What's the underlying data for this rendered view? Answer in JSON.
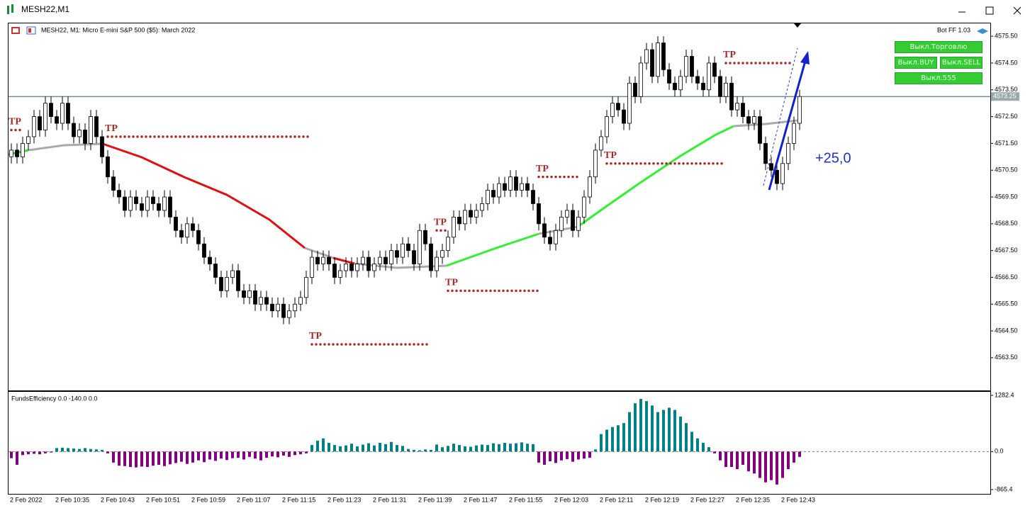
{
  "window": {
    "title": "MESH22,M1"
  },
  "chart_header": "MESH22, M1:  Micro E-mini S&P 500 ($5): March 2022",
  "bot_label": "Bot FF 1.03",
  "buttons": {
    "trading": "Выкл.Торговлю",
    "buy": "Выкл.BUY",
    "sell": "Выкл.SELL",
    "b555": "Выкл.555"
  },
  "chart_data": [
    {
      "type": "candlestick",
      "up_color": "#ffffff",
      "down_color": "#000000",
      "categories": [
        "2 Feb 2022",
        null,
        null,
        null,
        null,
        null,
        null,
        null,
        "2 Feb 10:35",
        null,
        null,
        null,
        null,
        null,
        null,
        null,
        "2 Feb 10:43",
        null,
        null,
        null,
        null,
        null,
        null,
        null,
        "2 Feb 10:51",
        null,
        null,
        null,
        null,
        null,
        null,
        null,
        "2 Feb 10:59",
        null,
        null,
        null,
        null,
        null,
        null,
        null,
        "2 Feb 11:07",
        null,
        null,
        null,
        null,
        null,
        null,
        null,
        "2 Feb 11:15",
        null,
        null,
        null,
        null,
        null,
        null,
        null,
        "2 Feb 11:23",
        null,
        null,
        null,
        null,
        null,
        null,
        null,
        "2 Feb 11:31",
        null,
        null,
        null,
        null,
        null,
        null,
        null,
        "2 Feb 11:39",
        null,
        null,
        null,
        null,
        null,
        null,
        null,
        "2 Feb 11:47",
        null,
        null,
        null,
        null,
        null,
        null,
        null,
        "2 Feb 11:55",
        null,
        null,
        null,
        null,
        null,
        null,
        null,
        "2 Feb 12:03",
        null,
        null,
        null,
        null,
        null,
        null,
        null,
        "2 Feb 12:11",
        null,
        null,
        null,
        null,
        null,
        null,
        null,
        "2 Feb 12:19",
        null,
        null,
        null,
        null,
        null,
        null,
        null,
        "2 Feb 12:27",
        null,
        null,
        null,
        null,
        null,
        null,
        null,
        "2 Feb 12:35",
        null,
        null,
        null,
        null,
        null,
        null,
        null,
        "2 Feb 12:43",
        null,
        null,
        null
      ],
      "open": [
        4571.0,
        4571.25,
        4571.0,
        4571.5,
        4571.75,
        4572.5,
        4572.0,
        4573.0,
        4572.5,
        4572.25,
        4573.0,
        4572.25,
        4571.75,
        4572.0,
        4571.5,
        4572.5,
        4571.75,
        4571.0,
        4570.25,
        4569.75,
        4569.5,
        4569.0,
        4569.5,
        4569.25,
        4569.0,
        4569.5,
        4569.25,
        4569.0,
        4569.5,
        4568.75,
        4568.25,
        4568.0,
        4568.5,
        4568.25,
        4567.75,
        4567.25,
        4567.0,
        4566.5,
        4566.0,
        4566.5,
        4566.75,
        4566.0,
        4565.75,
        4566.0,
        4565.5,
        4565.75,
        4565.5,
        4565.25,
        4565.5,
        4565.0,
        4565.25,
        4565.5,
        4565.75,
        4566.5,
        4567.25,
        4567.0,
        4567.25,
        4567.0,
        4566.5,
        4566.75,
        4567.0,
        4566.75,
        4567.0,
        4567.25,
        4566.75,
        4567.0,
        4567.25,
        4567.0,
        4567.5,
        4567.25,
        4567.75,
        4567.5,
        4567.0,
        4568.25,
        4567.75,
        4566.75,
        4567.25,
        4567.5,
        4568.0,
        4568.75,
        4568.5,
        4569.0,
        4568.75,
        4569.0,
        4569.25,
        4569.75,
        4569.5,
        4570.0,
        4569.75,
        4570.25,
        4569.75,
        4570.0,
        4569.75,
        4569.25,
        4568.5,
        4568.0,
        4567.75,
        4568.25,
        4568.75,
        4569.0,
        4568.25,
        4568.75,
        4569.5,
        4570.25,
        4571.25,
        4571.75,
        4572.5,
        4573.0,
        4572.75,
        4572.25,
        4573.75,
        4573.25,
        4574.5,
        4575.0,
        4574.0,
        4575.25,
        4574.25,
        4573.75,
        4573.5,
        4574.0,
        4574.75,
        4574.0,
        4573.75,
        4573.5,
        4574.5,
        4574.0,
        4573.25,
        4573.75,
        4572.75,
        4573.0,
        4572.5,
        4572.25,
        4572.5,
        4571.5,
        4570.75,
        4570.5,
        4570.0,
        4570.75,
        4571.5,
        4572.25
      ],
      "high": [
        4571.5,
        4571.5,
        4571.75,
        4572.0,
        4572.75,
        4572.75,
        4573.25,
        4573.25,
        4572.75,
        4573.25,
        4573.25,
        4572.5,
        4572.25,
        4572.25,
        4572.75,
        4572.75,
        4572.0,
        4571.25,
        4570.5,
        4570.0,
        4569.75,
        4569.75,
        4569.75,
        4569.5,
        4569.75,
        4569.75,
        4569.5,
        4569.75,
        4569.75,
        4569.0,
        4568.5,
        4568.75,
        4568.75,
        4568.5,
        4568.0,
        4567.5,
        4567.25,
        4566.75,
        4566.75,
        4567.0,
        4567.0,
        4566.25,
        4566.25,
        4566.25,
        4566.0,
        4566.0,
        4565.75,
        4565.75,
        4565.75,
        4565.5,
        4565.75,
        4566.0,
        4566.75,
        4567.5,
        4567.5,
        4567.5,
        4567.5,
        4567.25,
        4567.0,
        4567.25,
        4567.25,
        4567.25,
        4567.5,
        4567.5,
        4567.25,
        4567.5,
        4567.5,
        4567.75,
        4567.75,
        4568.0,
        4568.0,
        4567.75,
        4568.5,
        4568.5,
        4568.0,
        4567.5,
        4567.75,
        4568.25,
        4569.0,
        4569.0,
        4569.25,
        4569.25,
        4569.25,
        4569.5,
        4570.0,
        4570.0,
        4570.25,
        4570.25,
        4570.5,
        4570.5,
        4570.25,
        4570.25,
        4570.0,
        4569.5,
        4568.75,
        4568.25,
        4568.5,
        4569.0,
        4569.25,
        4569.25,
        4569.0,
        4569.75,
        4570.5,
        4571.5,
        4572.0,
        4572.75,
        4573.25,
        4573.25,
        4573.0,
        4574.0,
        4574.0,
        4574.75,
        4575.25,
        4575.25,
        4575.5,
        4575.5,
        4574.5,
        4574.0,
        4574.25,
        4575.0,
        4575.0,
        4574.25,
        4574.0,
        4574.75,
        4574.75,
        4574.25,
        4574.0,
        4574.0,
        4573.25,
        4573.25,
        4572.75,
        4572.75,
        4572.75,
        4571.75,
        4571.0,
        4570.75,
        4571.0,
        4571.75,
        4572.5,
        4573.5
      ],
      "low": [
        4570.75,
        4570.75,
        4570.75,
        4571.25,
        4571.5,
        4571.75,
        4571.75,
        4572.25,
        4572.0,
        4572.0,
        4572.0,
        4571.5,
        4571.5,
        4571.25,
        4571.25,
        4571.5,
        4570.75,
        4570.0,
        4569.5,
        4569.25,
        4568.75,
        4568.75,
        4569.0,
        4568.75,
        4568.75,
        4569.0,
        4568.75,
        4568.75,
        4568.5,
        4568.0,
        4567.75,
        4567.75,
        4568.0,
        4567.5,
        4567.0,
        4566.75,
        4566.25,
        4565.75,
        4565.75,
        4566.25,
        4565.75,
        4565.5,
        4565.5,
        4565.25,
        4565.25,
        4565.25,
        4565.0,
        4565.0,
        4564.75,
        4564.75,
        4565.0,
        4565.25,
        4565.5,
        4566.25,
        4566.75,
        4566.75,
        4566.75,
        4566.25,
        4566.25,
        4566.5,
        4566.5,
        4566.5,
        4566.75,
        4566.5,
        4566.5,
        4566.75,
        4566.75,
        4566.75,
        4567.0,
        4567.0,
        4567.25,
        4566.75,
        4566.75,
        4567.5,
        4566.5,
        4566.5,
        4567.0,
        4567.25,
        4567.75,
        4568.25,
        4568.25,
        4568.5,
        4568.5,
        4568.75,
        4569.0,
        4569.25,
        4569.25,
        4569.5,
        4569.5,
        4569.5,
        4569.5,
        4569.5,
        4569.0,
        4568.25,
        4567.75,
        4567.5,
        4567.5,
        4568.0,
        4568.5,
        4568.0,
        4568.0,
        4568.5,
        4569.25,
        4570.0,
        4571.0,
        4571.5,
        4572.25,
        4572.5,
        4572.0,
        4572.0,
        4573.0,
        4573.0,
        4574.25,
        4573.75,
        4573.75,
        4574.0,
        4573.5,
        4573.25,
        4573.25,
        4573.75,
        4573.75,
        4573.5,
        4573.25,
        4573.25,
        4573.75,
        4573.0,
        4573.0,
        4572.5,
        4572.5,
        4572.25,
        4572.0,
        4572.0,
        4571.25,
        4570.5,
        4570.25,
        4569.75,
        4569.75,
        4570.5,
        4571.25,
        4572.0
      ],
      "close": [
        4571.25,
        4571.0,
        4571.5,
        4571.75,
        4572.5,
        4572.0,
        4573.0,
        4572.5,
        4572.25,
        4573.0,
        4572.25,
        4571.75,
        4572.0,
        4571.5,
        4572.5,
        4571.75,
        4571.0,
        4570.25,
        4569.75,
        4569.5,
        4569.0,
        4569.5,
        4569.25,
        4569.0,
        4569.5,
        4569.25,
        4569.0,
        4569.5,
        4568.75,
        4568.25,
        4568.0,
        4568.5,
        4568.25,
        4567.75,
        4567.25,
        4567.0,
        4566.5,
        4566.0,
        4566.5,
        4566.75,
        4566.0,
        4565.75,
        4566.0,
        4565.5,
        4565.75,
        4565.5,
        4565.25,
        4565.5,
        4565.0,
        4565.25,
        4565.5,
        4565.75,
        4566.5,
        4567.25,
        4567.0,
        4567.25,
        4567.0,
        4566.5,
        4566.75,
        4567.0,
        4566.75,
        4567.0,
        4567.25,
        4566.75,
        4567.0,
        4567.25,
        4567.0,
        4567.5,
        4567.25,
        4567.75,
        4567.5,
        4567.0,
        4568.25,
        4567.75,
        4566.75,
        4567.25,
        4567.5,
        4568.0,
        4568.75,
        4568.5,
        4569.0,
        4568.75,
        4569.0,
        4569.25,
        4569.75,
        4569.5,
        4570.0,
        4569.75,
        4570.25,
        4569.75,
        4570.0,
        4569.75,
        4569.25,
        4568.5,
        4568.0,
        4567.75,
        4568.25,
        4568.75,
        4569.0,
        4568.25,
        4568.75,
        4569.5,
        4570.25,
        4571.25,
        4571.75,
        4572.5,
        4573.0,
        4572.75,
        4572.25,
        4573.75,
        4573.25,
        4574.5,
        4575.0,
        4574.0,
        4575.25,
        4574.25,
        4573.75,
        4573.5,
        4574.0,
        4574.75,
        4574.0,
        4573.75,
        4573.5,
        4574.5,
        4574.0,
        4573.25,
        4573.75,
        4572.75,
        4573.0,
        4572.5,
        4572.25,
        4572.5,
        4571.5,
        4570.75,
        4570.5,
        4570.0,
        4570.75,
        4571.5,
        4572.25,
        4573.25
      ],
      "ylim": [
        4562.28,
        4575.98
      ],
      "yticks": [
        {
          "value": 4575.5,
          "label": "4575.50"
        },
        {
          "value": 4574.5,
          "label": "4574.50"
        },
        {
          "value": 4573.5,
          "label": "4573.50"
        },
        {
          "value": 4572.5,
          "label": "4572.50"
        },
        {
          "value": 4571.5,
          "label": "4571.50"
        },
        {
          "value": 4570.5,
          "label": "4570.50"
        },
        {
          "value": 4569.5,
          "label": "4569.50"
        },
        {
          "value": 4568.5,
          "label": "4568.50"
        },
        {
          "value": 4567.5,
          "label": "4567.50"
        },
        {
          "value": 4566.5,
          "label": "4566.50"
        },
        {
          "value": 4565.5,
          "label": "4565.50"
        },
        {
          "value": 4564.5,
          "label": "4564.50"
        },
        {
          "value": 4563.5,
          "label": "4563.50"
        }
      ],
      "current_price": {
        "value": 4573.25,
        "label": "4573.25"
      },
      "tp_levels": [
        {
          "label": "TP",
          "value": 4572.0,
          "start": 0,
          "end": 2
        },
        {
          "label": "TP",
          "value": 4571.75,
          "start": 17,
          "end": 53
        },
        {
          "label": "TP",
          "value": 4564.0,
          "start": 53,
          "end": 74
        },
        {
          "label": "TP",
          "value": 4568.25,
          "start": 75,
          "end": 77
        },
        {
          "label": "TP",
          "value": 4566.0,
          "start": 77,
          "end": 93
        },
        {
          "label": "TP",
          "value": 4570.25,
          "start": 93,
          "end": 100
        },
        {
          "label": "TP",
          "value": 4570.75,
          "start": 105,
          "end": 126
        },
        {
          "label": "TP",
          "value": 4574.5,
          "start": 126,
          "end": 138
        }
      ],
      "annotation": "+25,0",
      "grid": false
    },
    {
      "type": "bar",
      "title": "FundsEfficiency 0.0 -140.0 0.0",
      "positive_color": "#008080",
      "negative_color": "#800080",
      "values": [
        -150,
        -300,
        -80,
        -60,
        -50,
        -60,
        -40,
        -20,
        80,
        90,
        80,
        70,
        60,
        80,
        60,
        50,
        40,
        -40,
        -250,
        -320,
        -330,
        -350,
        -360,
        -340,
        -350,
        -320,
        -300,
        -330,
        -290,
        -260,
        -230,
        -280,
        -250,
        -200,
        -240,
        -180,
        -210,
        -160,
        -190,
        -150,
        -140,
        -180,
        -120,
        -160,
        -200,
        -140,
        -110,
        -130,
        -90,
        -120,
        -80,
        -60,
        -40,
        150,
        250,
        300,
        200,
        150,
        120,
        140,
        180,
        120,
        160,
        190,
        140,
        200,
        170,
        220,
        150,
        130,
        60,
        40,
        30,
        50,
        40,
        160,
        100,
        130,
        180,
        150,
        120,
        110,
        140,
        160,
        150,
        190,
        170,
        200,
        180,
        190,
        210,
        180,
        170,
        -250,
        -300,
        -220,
        -260,
        -200,
        -170,
        -230,
        -180,
        -160,
        -140,
        50,
        400,
        500,
        560,
        600,
        650,
        900,
        1100,
        1200,
        1150,
        1050,
        900,
        950,
        1000,
        950,
        800,
        650,
        450,
        300,
        200,
        100,
        -40,
        -200,
        -350,
        -350,
        -400,
        -300,
        -450,
        -500,
        -600,
        -700,
        -650,
        -750,
        -600,
        -400,
        -250,
        -120
      ],
      "ylim": [
        -963,
        1378
      ],
      "yticks": [
        1282.4,
        {
          "value": 0,
          "label": "0.0"
        },
        -865.4
      ],
      "zero_line": true
    }
  ]
}
